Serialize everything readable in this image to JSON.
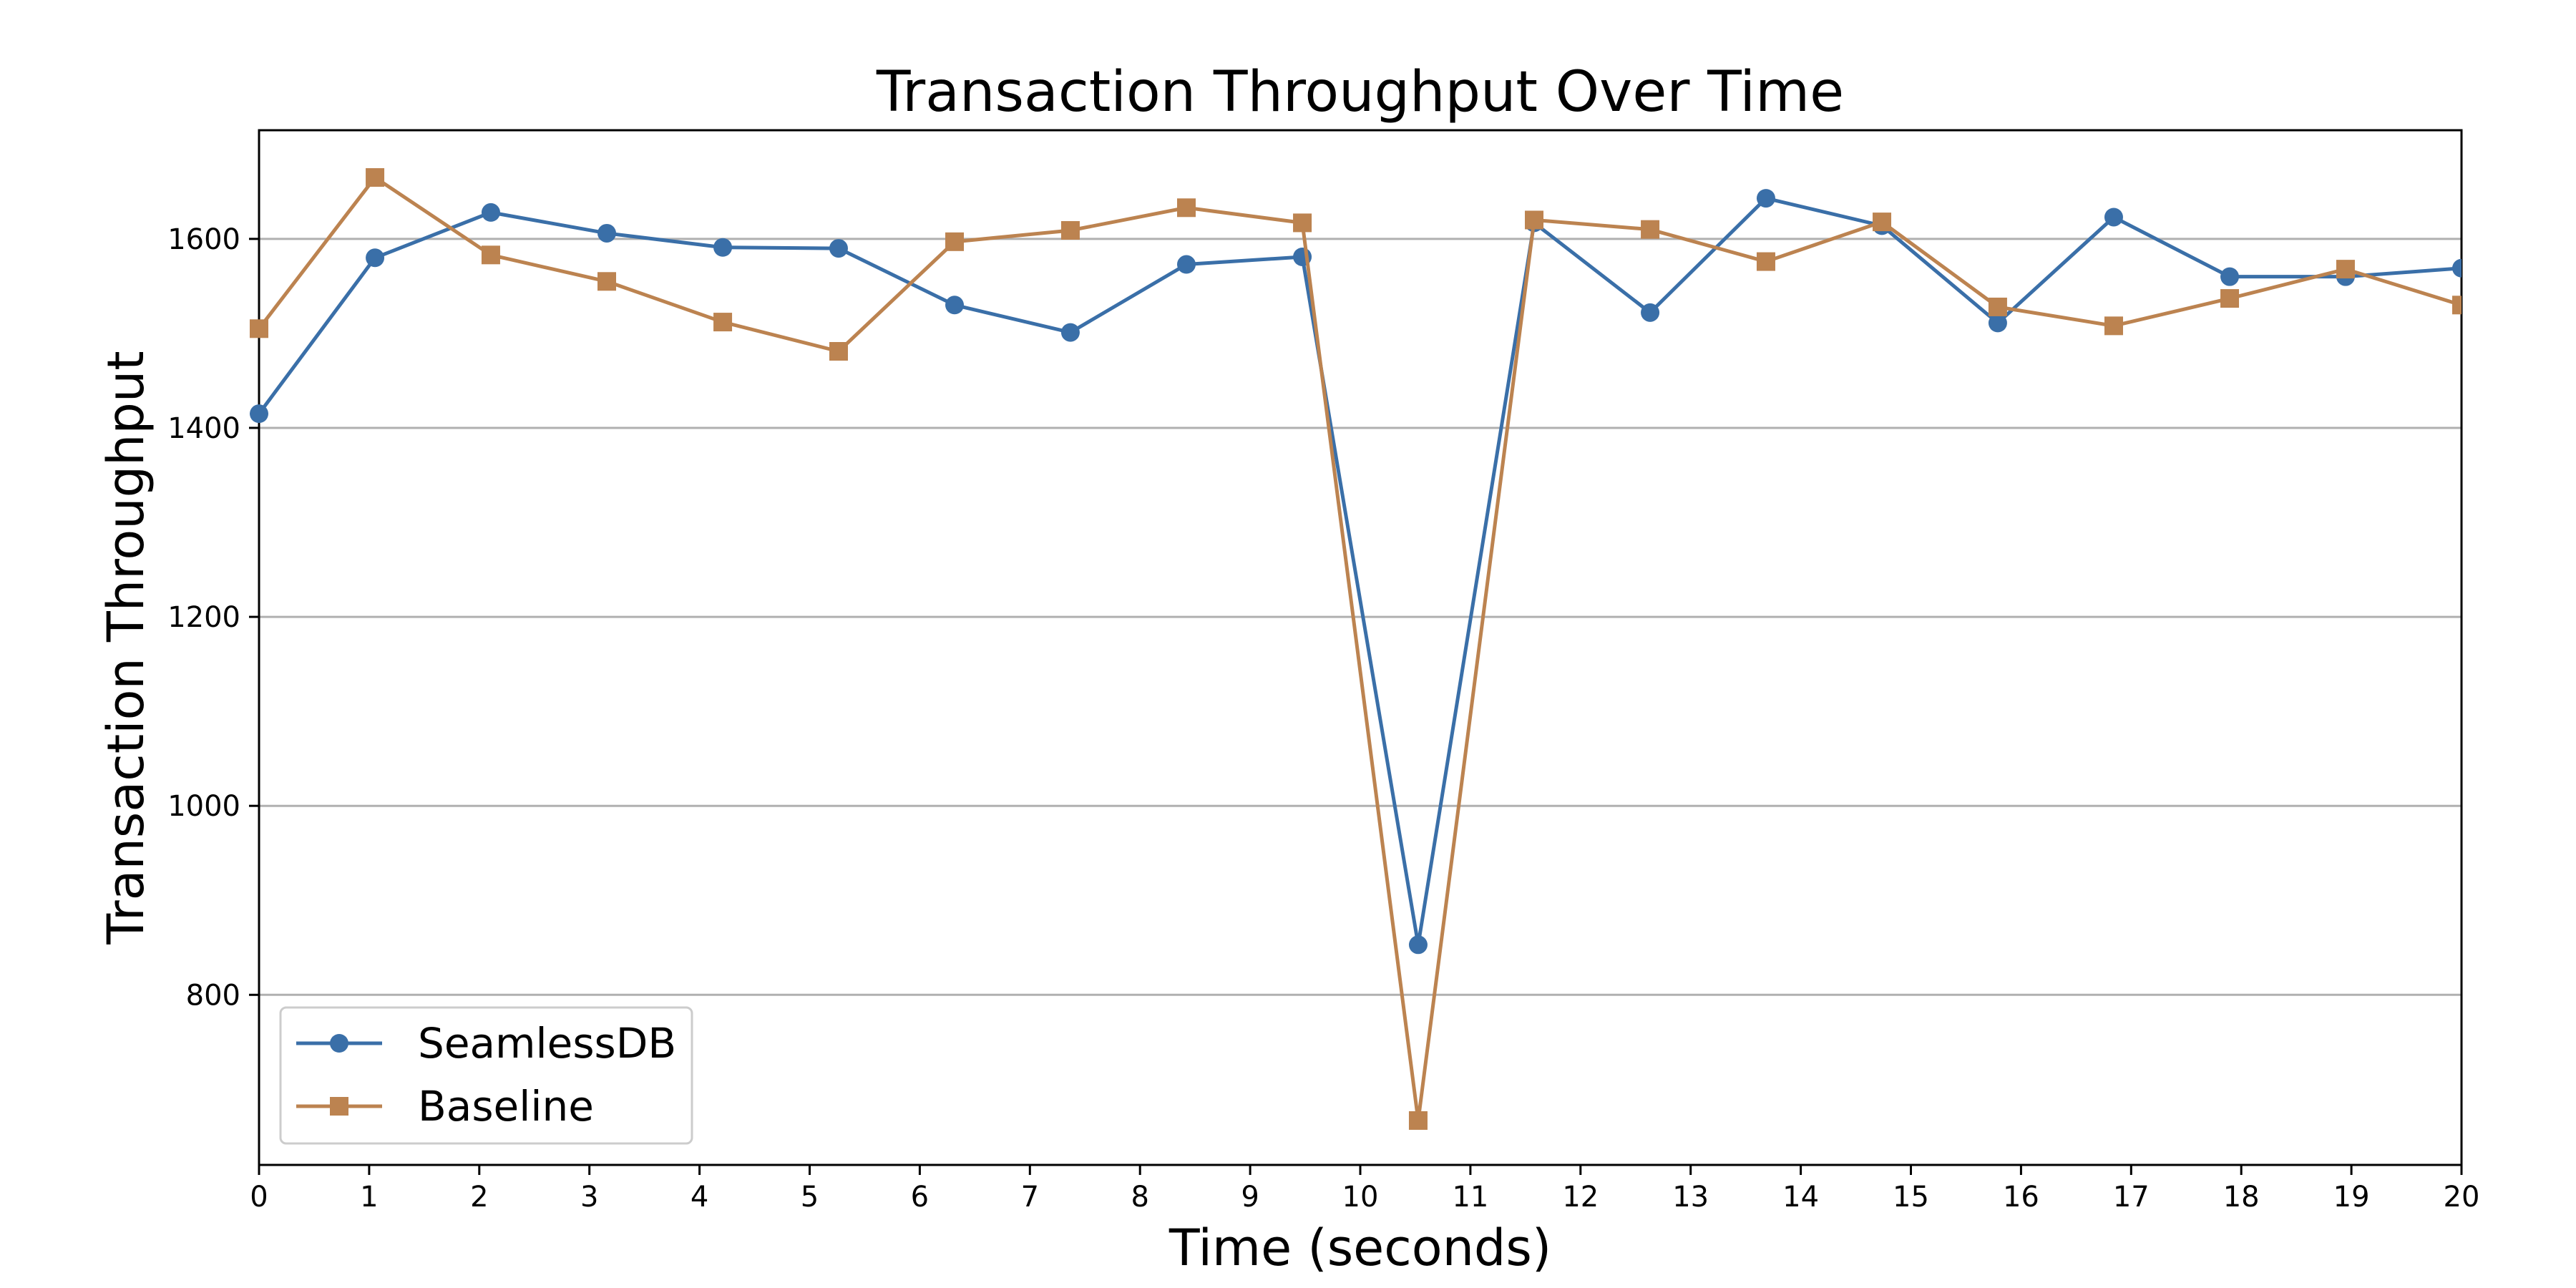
{
  "chart_data": {
    "type": "line",
    "title": "Transaction Throughput Over Time",
    "xlabel": "Time (seconds)",
    "ylabel": "Transaction Throughput",
    "xlim": [
      0,
      20
    ],
    "ylim": [
      620,
      1715
    ],
    "xticks": [
      0,
      1,
      2,
      3,
      4,
      5,
      6,
      7,
      8,
      9,
      10,
      11,
      12,
      13,
      14,
      15,
      16,
      17,
      18,
      19,
      20
    ],
    "yticks": [
      800,
      1000,
      1200,
      1400,
      1600
    ],
    "grid": "horizontal",
    "legend_position": "lower-left",
    "series": [
      {
        "name": "SeamlessDB",
        "color": "#3a6fa8",
        "marker": "circle",
        "x": [
          0,
          1.053,
          2.105,
          3.158,
          4.211,
          5.263,
          6.316,
          7.368,
          8.421,
          9.474,
          10.526,
          11.579,
          12.632,
          13.684,
          14.737,
          15.789,
          16.842,
          17.895,
          18.947,
          20
        ],
        "values": [
          1415,
          1580,
          1628,
          1606,
          1591,
          1590,
          1530,
          1501,
          1573,
          1581,
          853,
          1617,
          1522,
          1643,
          1614,
          1511,
          1623,
          1560,
          1560,
          1569
        ]
      },
      {
        "name": "Baseline",
        "color": "#bc8350",
        "marker": "square",
        "x": [
          0,
          1.053,
          2.105,
          3.158,
          4.211,
          5.263,
          6.316,
          7.368,
          8.421,
          9.474,
          10.526,
          11.579,
          12.632,
          13.684,
          14.737,
          15.789,
          16.842,
          17.895,
          18.947,
          20
        ],
        "values": [
          1505,
          1665,
          1583,
          1555,
          1512,
          1481,
          1597,
          1609,
          1633,
          1617,
          667,
          1620,
          1610,
          1576,
          1618,
          1528,
          1508,
          1537,
          1568,
          1530
        ]
      }
    ]
  }
}
